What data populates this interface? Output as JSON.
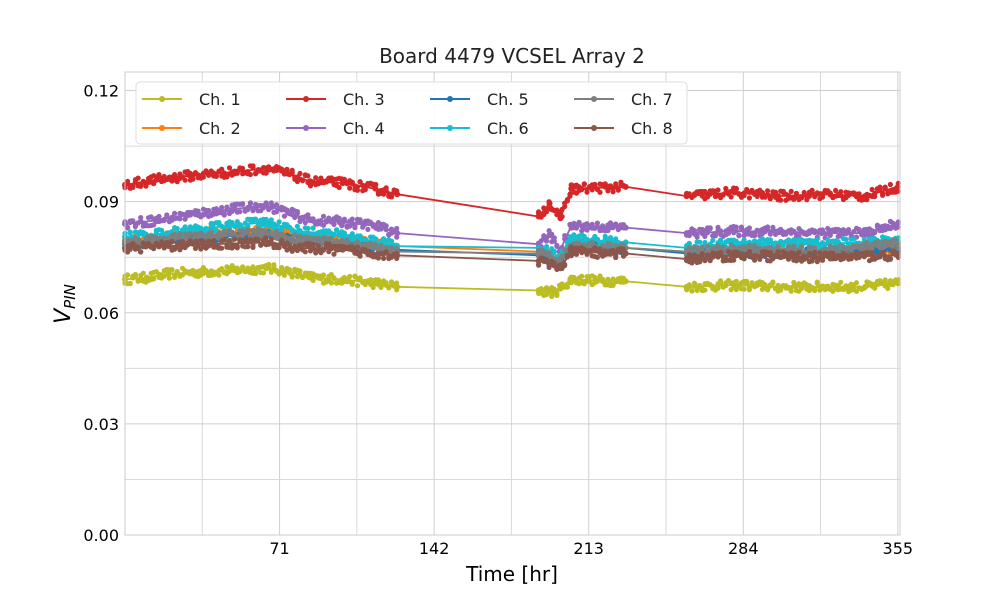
{
  "chart_data": {
    "type": "line",
    "title": "Board 4479 VCSEL Array 2",
    "xlabel": "Time [hr]",
    "ylabel_main": "V",
    "ylabel_sub": "PIN",
    "xlim": [
      0,
      356
    ],
    "ylim": [
      0,
      0.125
    ],
    "xticks": [
      71,
      142,
      213,
      284,
      355
    ],
    "xtick_labels": [
      "71",
      "142",
      "213",
      "284",
      "355"
    ],
    "yticks": [
      0.0,
      0.03,
      0.06,
      0.09,
      0.12
    ],
    "ytick_labels": [
      "0.00",
      "0.03",
      "0.06",
      "0.09",
      "0.12"
    ],
    "grid": true,
    "legend_position": "top-left",
    "legend_columns": 4,
    "series": [
      {
        "name": "Ch. 1",
        "color": "#bcbd22",
        "points": [
          [
            0,
            0.069
          ],
          [
            10,
            0.0695
          ],
          [
            20,
            0.0705
          ],
          [
            35,
            0.071
          ],
          [
            50,
            0.0715
          ],
          [
            65,
            0.072
          ],
          [
            75,
            0.0712
          ],
          [
            85,
            0.0695
          ],
          [
            100,
            0.069
          ],
          [
            115,
            0.068
          ],
          [
            125,
            0.067
          ],
          [
            190,
            0.066
          ],
          [
            197,
            0.0655
          ],
          [
            200,
            0.0665
          ],
          [
            205,
            0.069
          ],
          [
            230,
            0.0685
          ],
          [
            258,
            0.067
          ],
          [
            280,
            0.0675
          ],
          [
            300,
            0.067
          ],
          [
            320,
            0.067
          ],
          [
            340,
            0.067
          ],
          [
            355,
            0.068
          ]
        ]
      },
      {
        "name": "Ch. 2",
        "color": "#ff7f0e",
        "points": [
          [
            0,
            0.0795
          ],
          [
            20,
            0.0805
          ],
          [
            40,
            0.0815
          ],
          [
            65,
            0.082
          ],
          [
            80,
            0.0805
          ],
          [
            100,
            0.0795
          ],
          [
            125,
            0.078
          ],
          [
            190,
            0.0765
          ],
          [
            200,
            0.074
          ],
          [
            205,
            0.0785
          ],
          [
            230,
            0.0775
          ],
          [
            258,
            0.0765
          ],
          [
            280,
            0.077
          ],
          [
            320,
            0.0765
          ],
          [
            355,
            0.077
          ]
        ]
      },
      {
        "name": "Ch. 3",
        "color": "#d62728",
        "points": [
          [
            0,
            0.0945
          ],
          [
            15,
            0.096
          ],
          [
            30,
            0.097
          ],
          [
            50,
            0.098
          ],
          [
            65,
            0.099
          ],
          [
            75,
            0.0975
          ],
          [
            85,
            0.0955
          ],
          [
            100,
            0.095
          ],
          [
            115,
            0.0935
          ],
          [
            125,
            0.092
          ],
          [
            190,
            0.086
          ],
          [
            195,
            0.0895
          ],
          [
            200,
            0.0855
          ],
          [
            205,
            0.0935
          ],
          [
            230,
            0.094
          ],
          [
            258,
            0.0915
          ],
          [
            280,
            0.0925
          ],
          [
            300,
            0.0915
          ],
          [
            320,
            0.092
          ],
          [
            340,
            0.0915
          ],
          [
            355,
            0.094
          ]
        ]
      },
      {
        "name": "Ch. 4",
        "color": "#9467bd",
        "points": [
          [
            0,
            0.084
          ],
          [
            15,
            0.085
          ],
          [
            30,
            0.0865
          ],
          [
            50,
            0.088
          ],
          [
            65,
            0.089
          ],
          [
            75,
            0.087
          ],
          [
            85,
            0.085
          ],
          [
            100,
            0.0845
          ],
          [
            115,
            0.0835
          ],
          [
            125,
            0.0815
          ],
          [
            190,
            0.0785
          ],
          [
            195,
            0.081
          ],
          [
            200,
            0.077
          ],
          [
            205,
            0.0835
          ],
          [
            230,
            0.083
          ],
          [
            258,
            0.0815
          ],
          [
            280,
            0.082
          ],
          [
            300,
            0.082
          ],
          [
            320,
            0.0815
          ],
          [
            340,
            0.0815
          ],
          [
            355,
            0.084
          ]
        ]
      },
      {
        "name": "Ch. 5",
        "color": "#1f77b4",
        "points": [
          [
            0,
            0.0785
          ],
          [
            20,
            0.0795
          ],
          [
            40,
            0.0805
          ],
          [
            65,
            0.081
          ],
          [
            80,
            0.0795
          ],
          [
            100,
            0.0785
          ],
          [
            125,
            0.077
          ],
          [
            190,
            0.0755
          ],
          [
            200,
            0.0735
          ],
          [
            205,
            0.078
          ],
          [
            230,
            0.0775
          ],
          [
            258,
            0.076
          ],
          [
            280,
            0.0765
          ],
          [
            320,
            0.076
          ],
          [
            355,
            0.0775
          ]
        ]
      },
      {
        "name": "Ch. 6",
        "color": "#17becf",
        "points": [
          [
            0,
            0.0805
          ],
          [
            20,
            0.0815
          ],
          [
            40,
            0.083
          ],
          [
            65,
            0.0845
          ],
          [
            80,
            0.082
          ],
          [
            100,
            0.081
          ],
          [
            125,
            0.078
          ],
          [
            190,
            0.0775
          ],
          [
            200,
            0.075
          ],
          [
            205,
            0.08
          ],
          [
            230,
            0.079
          ],
          [
            258,
            0.0775
          ],
          [
            280,
            0.079
          ],
          [
            320,
            0.0785
          ],
          [
            355,
            0.0795
          ]
        ]
      },
      {
        "name": "Ch. 7",
        "color": "#7f7f7f",
        "points": [
          [
            0,
            0.079
          ],
          [
            20,
            0.08
          ],
          [
            40,
            0.0805
          ],
          [
            65,
            0.0815
          ],
          [
            80,
            0.0795
          ],
          [
            100,
            0.0785
          ],
          [
            125,
            0.0765
          ],
          [
            190,
            0.076
          ],
          [
            200,
            0.0745
          ],
          [
            205,
            0.078
          ],
          [
            230,
            0.0775
          ],
          [
            258,
            0.0765
          ],
          [
            280,
            0.077
          ],
          [
            320,
            0.0765
          ],
          [
            355,
            0.0785
          ]
        ]
      },
      {
        "name": "Ch. 8",
        "color": "#8c564b",
        "points": [
          [
            0,
            0.0775
          ],
          [
            20,
            0.078
          ],
          [
            40,
            0.0785
          ],
          [
            65,
            0.079
          ],
          [
            80,
            0.0775
          ],
          [
            100,
            0.077
          ],
          [
            125,
            0.0755
          ],
          [
            190,
            0.074
          ],
          [
            200,
            0.072
          ],
          [
            205,
            0.0765
          ],
          [
            230,
            0.076
          ],
          [
            258,
            0.0745
          ],
          [
            280,
            0.0755
          ],
          [
            320,
            0.075
          ],
          [
            355,
            0.0755
          ]
        ]
      }
    ]
  }
}
